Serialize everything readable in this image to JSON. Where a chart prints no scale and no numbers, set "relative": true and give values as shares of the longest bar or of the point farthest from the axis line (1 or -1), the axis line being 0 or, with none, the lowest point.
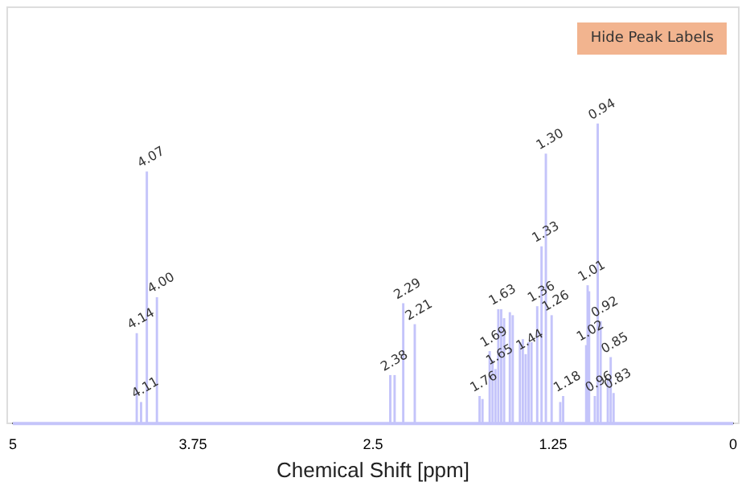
{
  "chart_data": {
    "type": "bar",
    "relative": true,
    "xlabel": "Chemical Shift [ppm]",
    "xlim": [
      5,
      0
    ],
    "xticks": [
      5,
      3.75,
      2.5,
      1.25,
      0
    ],
    "grid": false,
    "legend": false,
    "annotations": [
      "Hide Peak Labels",
      {
        "text": "4.14",
        "x": 4.14,
        "y": 0.3
      },
      {
        "text": "4.11",
        "x": 4.11,
        "y": 0.07
      },
      {
        "text": "4.07",
        "x": 4.07,
        "y": 0.84
      },
      {
        "text": "4.00",
        "x": 4.0,
        "y": 0.42
      },
      {
        "text": "2.38",
        "x": 2.38,
        "y": 0.16
      },
      {
        "text": "2.29",
        "x": 2.29,
        "y": 0.4
      },
      {
        "text": "2.21",
        "x": 2.21,
        "y": 0.33
      },
      {
        "text": "1.76",
        "x": 1.76,
        "y": 0.09
      },
      {
        "text": "1.69",
        "x": 1.69,
        "y": 0.24
      },
      {
        "text": "1.65",
        "x": 1.65,
        "y": 0.18
      },
      {
        "text": "1.63",
        "x": 1.63,
        "y": 0.38
      },
      {
        "text": "1.44",
        "x": 1.44,
        "y": 0.23
      },
      {
        "text": "1.36",
        "x": 1.36,
        "y": 0.39
      },
      {
        "text": "1.33",
        "x": 1.33,
        "y": 0.59
      },
      {
        "text": "1.30",
        "x": 1.3,
        "y": 0.9
      },
      {
        "text": "1.26",
        "x": 1.26,
        "y": 0.36
      },
      {
        "text": "1.18",
        "x": 1.18,
        "y": 0.09
      },
      {
        "text": "1.02",
        "x": 1.02,
        "y": 0.26
      },
      {
        "text": "1.01",
        "x": 1.01,
        "y": 0.46
      },
      {
        "text": "0.94",
        "x": 0.94,
        "y": 1
      },
      {
        "text": "0.92",
        "x": 0.92,
        "y": 0.34
      },
      {
        "text": "0.96",
        "x": 0.96,
        "y": 0.09
      },
      {
        "text": "0.85",
        "x": 0.85,
        "y": 0.22
      },
      {
        "text": "0.83",
        "x": 0.83,
        "y": 0.1
      }
    ],
    "x": [
      4.14,
      4.11,
      4.07,
      4.0,
      2.38,
      2.35,
      2.29,
      2.21,
      1.76,
      1.74,
      1.69,
      1.67,
      1.65,
      1.63,
      1.61,
      1.59,
      1.55,
      1.53,
      1.48,
      1.46,
      1.44,
      1.42,
      1.4,
      1.36,
      1.33,
      1.3,
      1.26,
      1.2,
      1.18,
      1.02,
      1.01,
      1.0,
      0.96,
      0.94,
      0.92,
      0.87,
      0.85,
      0.83
    ],
    "series": [
      {
        "color": "#c4c4fa",
        "values": [
          0.3,
          0.07,
          0.84,
          0.42,
          0.16,
          0.16,
          0.4,
          0.33,
          0.09,
          0.08,
          0.24,
          0.21,
          0.18,
          0.38,
          0.38,
          0.35,
          0.37,
          0.36,
          0.27,
          0.28,
          0.23,
          0.27,
          0.27,
          0.39,
          0.59,
          0.9,
          0.36,
          0.07,
          0.09,
          0.26,
          0.46,
          0.44,
          0.09,
          1,
          0.34,
          0.15,
          0.22,
          0.1
        ]
      }
    ]
  }
}
